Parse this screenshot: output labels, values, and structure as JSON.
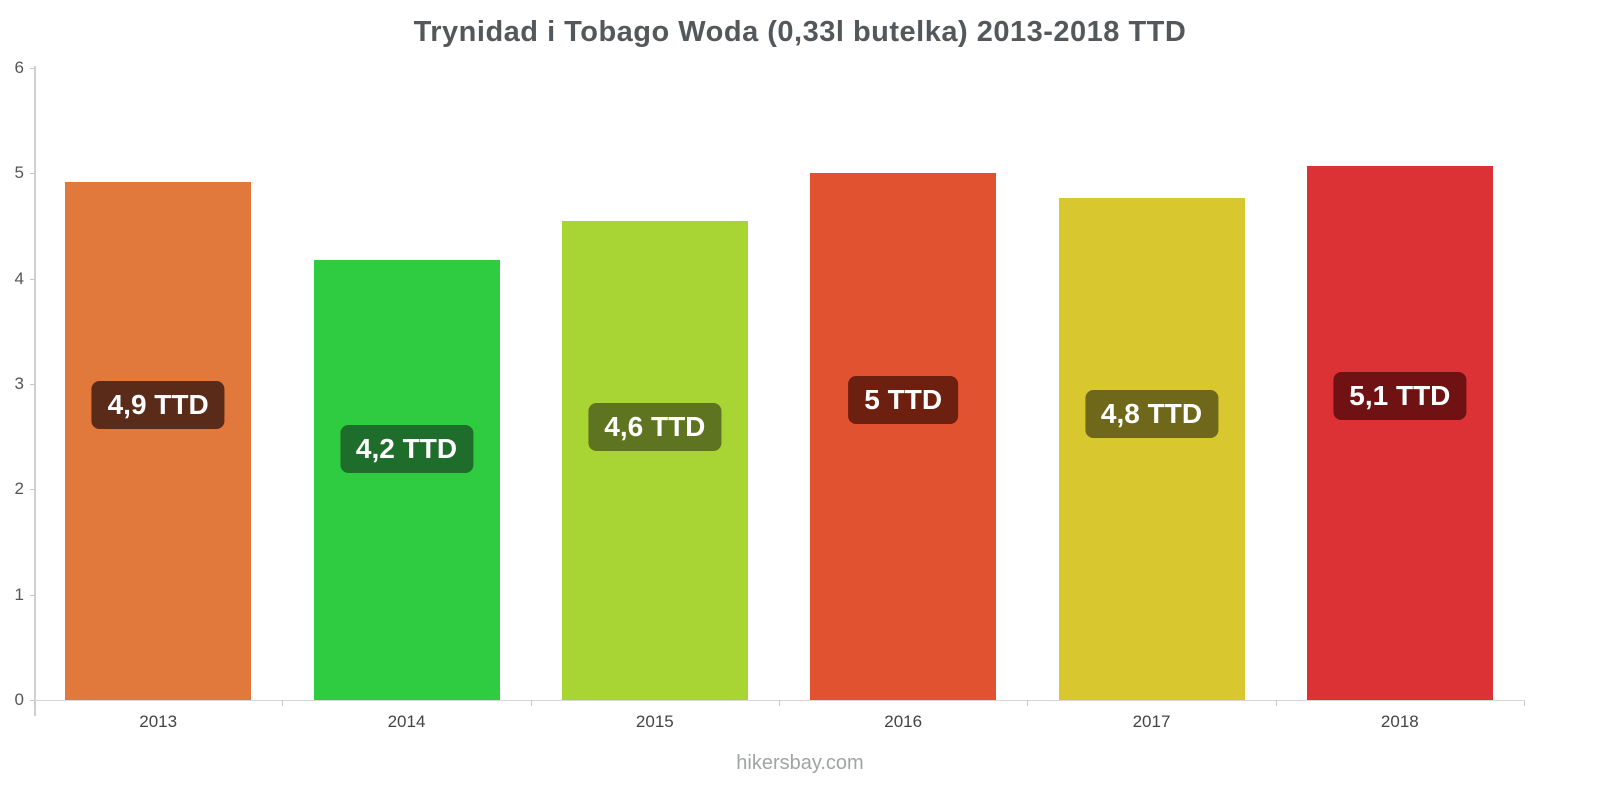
{
  "title": "Trynidad i Tobago Woda (0,33l butelka) 2013-2018 TTD",
  "footer": "hikersbay.com",
  "chart_data": {
    "type": "bar",
    "title": "Trynidad i Tobago Woda (0,33l butelka) 2013-2018 TTD",
    "categories": [
      "2013",
      "2014",
      "2015",
      "2016",
      "2017",
      "2018"
    ],
    "values": [
      4.92,
      4.18,
      4.55,
      5.0,
      4.77,
      5.07
    ],
    "value_labels": [
      "4,9 TTD",
      "4,2 TTD",
      "4,6 TTD",
      "5 TTD",
      "4,8 TTD",
      "5,1 TTD"
    ],
    "bar_colors": [
      "#E1793C",
      "#2FCC41",
      "#A8D434",
      "#E15231",
      "#D8C72F",
      "#DC3135"
    ],
    "label_bg_colors": [
      "#5B2B1A",
      "#1F6D2A",
      "#5E7420",
      "#6D1F10",
      "#6F671A",
      "#701114"
    ],
    "xlabel": "",
    "ylabel": "",
    "ylim": [
      0,
      6
    ],
    "yticks": [
      0,
      1,
      2,
      3,
      4,
      5,
      6
    ],
    "grid": false,
    "legend": false,
    "unit": "TTD"
  }
}
